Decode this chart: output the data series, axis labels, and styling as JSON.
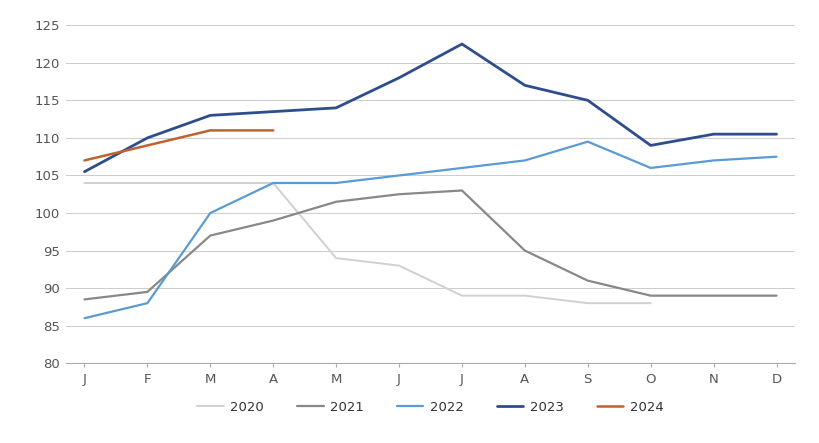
{
  "months": [
    "J",
    "F",
    "M",
    "A",
    "M",
    "J",
    "J",
    "A",
    "S",
    "O",
    "N",
    "D"
  ],
  "series": {
    "2020": [
      104,
      104,
      104,
      104,
      94,
      93,
      89,
      89,
      88,
      88,
      null,
      null
    ],
    "2021": [
      88.5,
      89.5,
      97,
      99,
      101.5,
      102.5,
      103,
      95,
      91,
      89,
      89,
      89
    ],
    "2022": [
      86,
      88,
      100,
      104,
      104,
      105,
      106,
      107,
      109.5,
      106,
      107,
      107.5
    ],
    "2023": [
      105.5,
      110,
      113,
      113.5,
      114,
      118,
      122.5,
      117,
      115,
      109,
      110.5,
      110.5
    ],
    "2024": [
      107,
      109,
      111,
      111,
      null,
      null,
      null,
      null,
      null,
      null,
      null,
      null
    ]
  },
  "colors": {
    "2020": "#d0d0d0",
    "2021": "#888888",
    "2022": "#5b9bd5",
    "2023": "#2e4d8e",
    "2024": "#c0622f"
  },
  "linewidths": {
    "2020": 1.4,
    "2021": 1.6,
    "2022": 1.6,
    "2023": 2.0,
    "2024": 1.8
  },
  "ylim": [
    80,
    126
  ],
  "yticks": [
    80,
    85,
    90,
    95,
    100,
    105,
    110,
    115,
    120,
    125
  ],
  "background_color": "#ffffff",
  "grid_color": "#cccccc",
  "legend_years": [
    "2020",
    "2021",
    "2022",
    "2023",
    "2024"
  ]
}
